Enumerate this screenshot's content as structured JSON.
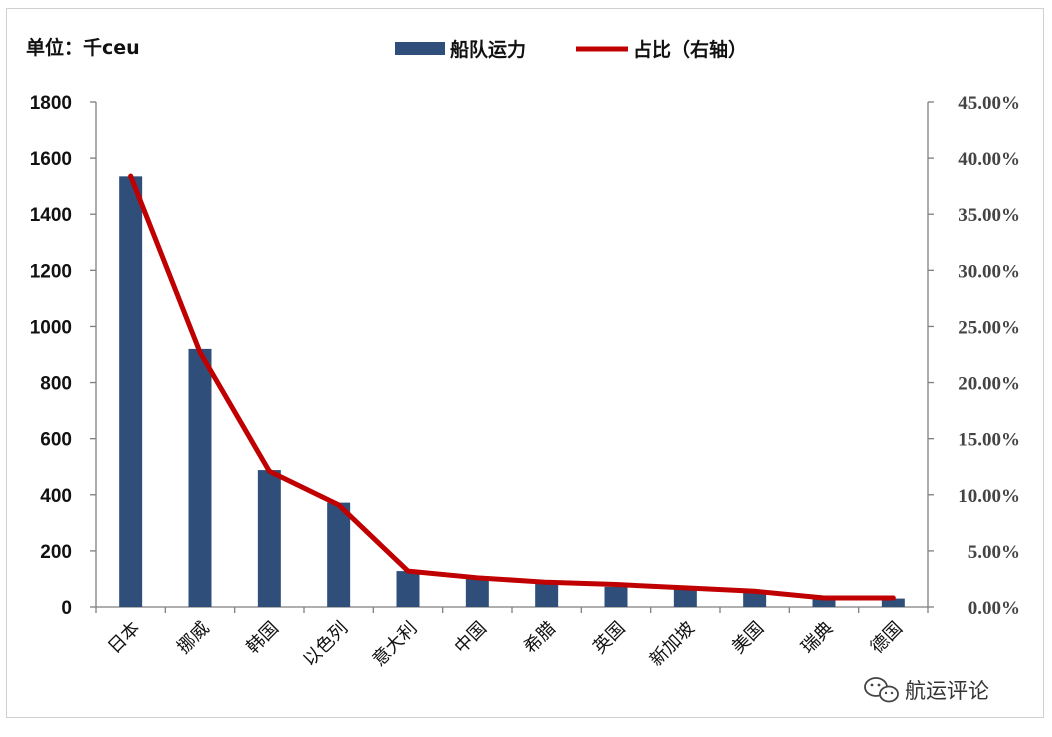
{
  "unit_label": "单位：千ceu",
  "watermark": "航运评论",
  "colors": {
    "bar": "#2f4f7a",
    "line": "#c00000"
  },
  "chart_data": {
    "type": "bar",
    "categories": [
      "日本",
      "挪威",
      "韩国",
      "以色列",
      "意大利",
      "中国",
      "希腊",
      "英国",
      "新加坡",
      "美国",
      "瑞典",
      "德国"
    ],
    "series": [
      {
        "name": "船队运力",
        "type": "bar",
        "axis": "left",
        "values": [
          1535,
          920,
          488,
          372,
          128,
          105,
          82,
          72,
          64,
          57,
          28,
          30
        ]
      },
      {
        "name": "占比（右轴）",
        "type": "line",
        "axis": "right",
        "values": [
          0.384,
          0.227,
          0.121,
          0.091,
          0.032,
          0.026,
          0.022,
          0.02,
          0.017,
          0.014,
          0.008,
          0.008
        ]
      }
    ],
    "y_left": {
      "min": 0,
      "max": 1800,
      "ticks": [
        "0",
        "200",
        "400",
        "600",
        "800",
        "1000",
        "1200",
        "1400",
        "1600",
        "1800"
      ]
    },
    "y_right": {
      "min": 0,
      "max": 0.45,
      "ticks": [
        "0.00%",
        "5.00%",
        "10.00%",
        "15.00%",
        "20.00%",
        "25.00%",
        "30.00%",
        "35.00%",
        "40.00%",
        "45.00%"
      ]
    },
    "legend": {
      "placement": "top-center",
      "entries": [
        "船队运力",
        "占比（右轴）"
      ]
    },
    "grid": false
  }
}
